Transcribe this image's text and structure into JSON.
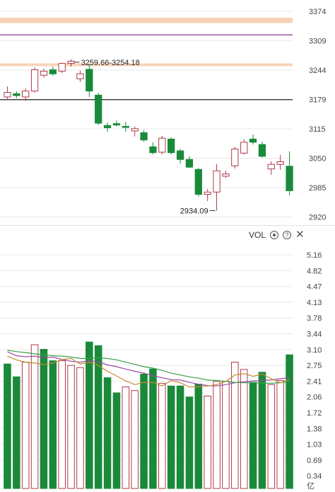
{
  "colors": {
    "up": "#b03a48",
    "down": "#1a8a3a",
    "grid": "#e8e8e8",
    "axis_text": "#444444",
    "zone": "#f8d2b8",
    "purple_line": "#8b3a8b",
    "ma_purple": "#9a4aa0",
    "ma_green": "#3aa04a",
    "ma_orange": "#c88a30"
  },
  "price_axis": {
    "ticks": [
      "3374",
      "3309",
      "3244",
      "3179",
      "3115",
      "3050",
      "2985",
      "2920"
    ]
  },
  "volume_axis": {
    "ticks": [
      "5.16",
      "4.82",
      "4.47",
      "4.13",
      "3.78",
      "3.44",
      "3.10",
      "2.75",
      "2.41",
      "2.06",
      "1.72",
      "1.38",
      "1.03",
      "0.69",
      "0.34"
    ],
    "unit_label": "亿"
  },
  "annotations": {
    "high_label": "3259.66-3254.18",
    "low_label": "2934.09"
  },
  "volume_header": {
    "label": "VOL",
    "icons": [
      "settings-icon",
      "help-icon",
      "close-icon"
    ]
  },
  "chart_data": [
    {
      "type": "candlestick",
      "title": "",
      "ylim": [
        2900,
        3390
      ],
      "reference_lines": [
        {
          "value": 3179,
          "color": "black"
        },
        {
          "value": 3322,
          "color": "purple"
        }
      ],
      "zones": [
        {
          "from": 3348,
          "to": 3360
        },
        {
          "from": 3253,
          "to": 3259
        }
      ],
      "candles": [
        {
          "o": 3185,
          "h": 3208,
          "l": 3178,
          "c": 3195
        },
        {
          "o": 3192,
          "h": 3198,
          "l": 3182,
          "c": 3188
        },
        {
          "o": 3185,
          "h": 3204,
          "l": 3176,
          "c": 3198
        },
        {
          "o": 3198,
          "h": 3250,
          "l": 3195,
          "c": 3245
        },
        {
          "o": 3233,
          "h": 3247,
          "l": 3228,
          "c": 3242
        },
        {
          "o": 3245,
          "h": 3252,
          "l": 3232,
          "c": 3236
        },
        {
          "o": 3242,
          "h": 3261,
          "l": 3238,
          "c": 3259
        },
        {
          "o": 3259,
          "h": 3268,
          "l": 3252,
          "c": 3264
        },
        {
          "o": 3225,
          "h": 3243,
          "l": 3218,
          "c": 3236
        },
        {
          "o": 3246,
          "h": 3258,
          "l": 3185,
          "c": 3198
        },
        {
          "o": 3189,
          "h": 3194,
          "l": 3123,
          "c": 3127
        },
        {
          "o": 3122,
          "h": 3129,
          "l": 3108,
          "c": 3117
        },
        {
          "o": 3126,
          "h": 3133,
          "l": 3120,
          "c": 3123
        },
        {
          "o": 3120,
          "h": 3130,
          "l": 3108,
          "c": 3118
        },
        {
          "o": 3110,
          "h": 3120,
          "l": 3098,
          "c": 3115
        },
        {
          "o": 3106,
          "h": 3112,
          "l": 3086,
          "c": 3090
        },
        {
          "o": 3075,
          "h": 3085,
          "l": 3058,
          "c": 3062
        },
        {
          "o": 3063,
          "h": 3099,
          "l": 3058,
          "c": 3094
        },
        {
          "o": 3092,
          "h": 3096,
          "l": 3058,
          "c": 3062
        },
        {
          "o": 3066,
          "h": 3070,
          "l": 3038,
          "c": 3047
        },
        {
          "o": 3047,
          "h": 3054,
          "l": 3028,
          "c": 3030
        },
        {
          "o": 3025,
          "h": 3028,
          "l": 2965,
          "c": 2970
        },
        {
          "o": 2970,
          "h": 2982,
          "l": 2955,
          "c": 2975
        },
        {
          "o": 2975,
          "h": 3037,
          "l": 2934,
          "c": 3022
        },
        {
          "o": 3010,
          "h": 3022,
          "l": 3006,
          "c": 3015
        },
        {
          "o": 3033,
          "h": 3075,
          "l": 3027,
          "c": 3070
        },
        {
          "o": 3061,
          "h": 3092,
          "l": 3058,
          "c": 3085
        },
        {
          "o": 3092,
          "h": 3102,
          "l": 3080,
          "c": 3085
        },
        {
          "o": 3080,
          "h": 3086,
          "l": 3051,
          "c": 3054
        },
        {
          "o": 3026,
          "h": 3043,
          "l": 3013,
          "c": 3036
        },
        {
          "o": 3036,
          "h": 3057,
          "l": 3024,
          "c": 3042
        },
        {
          "o": 3032,
          "h": 3065,
          "l": 2968,
          "c": 2978
        }
      ]
    },
    {
      "type": "bar",
      "title": "VOL",
      "ylim": [
        0,
        5.5
      ],
      "values": [
        2.78,
        2.5,
        2.82,
        3.2,
        3.1,
        2.85,
        2.85,
        2.75,
        2.7,
        3.26,
        3.18,
        2.48,
        2.15,
        2.28,
        2.2,
        2.56,
        2.67,
        2.36,
        2.3,
        2.3,
        2.06,
        2.34,
        2.08,
        2.4,
        2.4,
        2.82,
        2.66,
        2.38,
        2.6,
        2.33,
        2.42,
        2.98
      ],
      "up": [
        false,
        false,
        true,
        true,
        false,
        false,
        true,
        true,
        true,
        false,
        false,
        false,
        false,
        true,
        true,
        false,
        false,
        true,
        false,
        false,
        false,
        false,
        true,
        true,
        true,
        true,
        true,
        false,
        false,
        true,
        true,
        false
      ],
      "ma": [
        {
          "values": [
            3.05,
            2.96,
            2.94,
            2.95,
            2.92,
            2.93,
            2.88,
            2.84,
            2.82,
            2.85,
            2.83,
            2.76,
            2.72,
            2.67,
            2.62,
            2.58,
            2.52,
            2.48,
            2.44,
            2.43,
            2.38,
            2.34,
            2.31,
            2.3,
            2.33,
            2.37,
            2.39,
            2.41,
            2.42,
            2.43,
            2.46,
            2.48
          ]
        },
        {
          "values": [
            3.08,
            3.05,
            3.03,
            3.0,
            2.98,
            2.96,
            2.95,
            2.93,
            2.9,
            2.9,
            2.92,
            2.9,
            2.87,
            2.82,
            2.77,
            2.72,
            2.69,
            2.64,
            2.58,
            2.54,
            2.5,
            2.47,
            2.43,
            2.42,
            2.4,
            2.38,
            2.37,
            2.37,
            2.36,
            2.36,
            2.37,
            2.4
          ]
        },
        {
          "values": [
            2.95,
            2.87,
            2.82,
            2.8,
            2.77,
            2.8,
            2.88,
            2.9,
            2.78,
            2.82,
            2.75,
            2.62,
            2.52,
            2.41,
            2.33,
            2.38,
            2.38,
            2.3,
            2.42,
            2.37,
            2.28,
            2.28,
            2.3,
            2.33,
            2.4,
            2.54,
            2.57,
            2.51,
            2.56,
            2.46,
            2.37,
            2.44
          ]
        }
      ]
    }
  ]
}
